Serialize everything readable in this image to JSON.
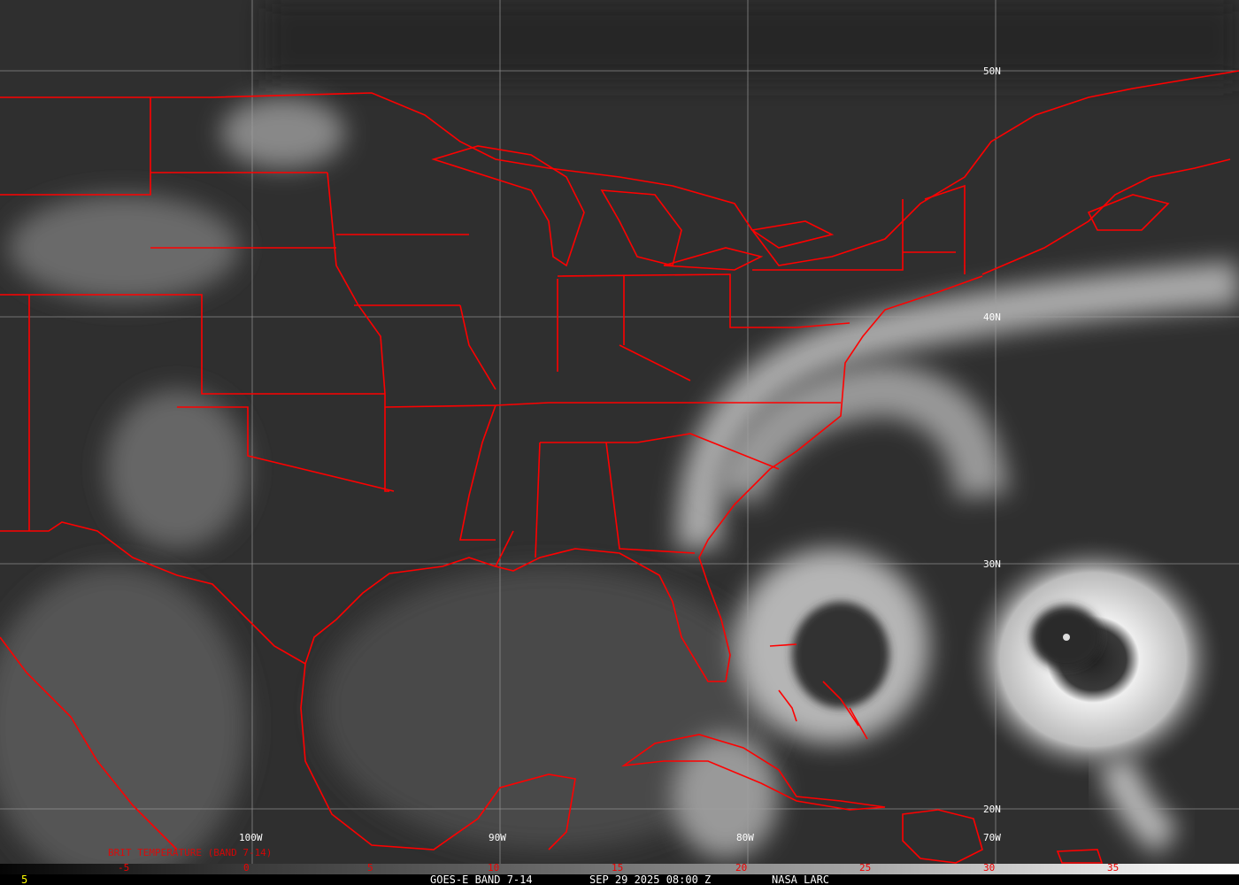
{
  "image": {
    "type": "satellite infrared imagery",
    "colors": {
      "background": "#2e2e2e",
      "borders": "#ff0000",
      "grid": "#a0a0a0",
      "scale_labels": "#dd0000",
      "footer_text": "#ffffff",
      "frame_number": "#ffff00"
    }
  },
  "grid": {
    "longitudes": [
      "100W",
      "90W",
      "80W",
      "70W"
    ],
    "latitudes": [
      "50N",
      "40N",
      "30N",
      "20N"
    ]
  },
  "legend": {
    "title": "BRIT TEMPERATURE (BAND 7-14)",
    "ticks": [
      "-5",
      "0",
      "5",
      "10",
      "15",
      "20",
      "25",
      "30",
      "35"
    ]
  },
  "footer": {
    "frame": "5",
    "satellite": "GOES-E BAND 7-14",
    "datetime": "SEP 29 2025 08:00 Z",
    "source": "NASA LARC"
  }
}
